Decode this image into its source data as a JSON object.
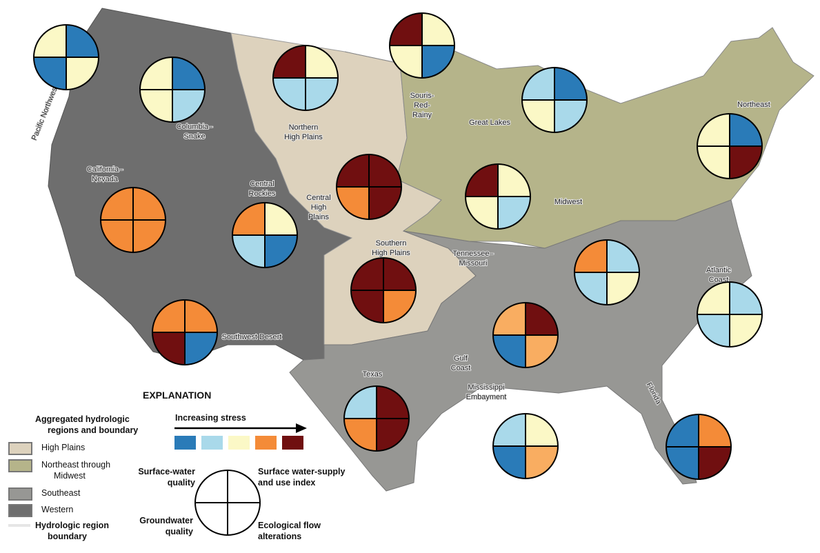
{
  "map": {
    "region_colors": {
      "High Plains": "#ddd2bd",
      "Northeast through Midwest": "#b5b48a",
      "Southeast": "#979794",
      "Western": "#6e6e6e"
    },
    "stress_colors": [
      "#2a7bb8",
      "#a9d9ea",
      "#fbf8c6",
      "#f48b38",
      "#700f10"
    ],
    "extra_color_light_orange": "#f9ad61",
    "region_labels": [
      "Pacific Northwest",
      "Columbia–\nSnake",
      "California–\nNevada",
      "Central\nRockies",
      "Northern\nHigh Plains",
      "Central\nHigh\nPlains",
      "Souris-\nRed-\nRainy",
      "Great Lakes",
      "Northeast",
      "Midwest",
      "Southern\nHigh Plains",
      "Tennessee–\nMissouri",
      "Atlantic\nCoast",
      "Southwest Desert",
      "Gulf\nCoast",
      "Texas",
      "Mississippi\nEmbayment",
      "Florida"
    ],
    "pies": [
      {
        "region": "Pacific Northwest",
        "q": [
          "#fbf8c6",
          "#2a7bb8",
          "#2a7bb8",
          "#fbf8c6"
        ]
      },
      {
        "region": "Columbia–Snake",
        "q": [
          "#fbf8c6",
          "#2a7bb8",
          "#fbf8c6",
          "#a9d9ea"
        ]
      },
      {
        "region": "Northern High Plains",
        "q": [
          "#700f10",
          "#fbf8c6",
          "#a9d9ea",
          "#a9d9ea"
        ]
      },
      {
        "region": "Souris-Red-Rainy",
        "q": [
          "#700f10",
          "#fbf8c6",
          "#fbf8c6",
          "#2a7bb8"
        ]
      },
      {
        "region": "Great Lakes",
        "q": [
          "#a9d9ea",
          "#2a7bb8",
          "#fbf8c6",
          "#a9d9ea"
        ]
      },
      {
        "region": "Northeast",
        "q": [
          "#fbf8c6",
          "#2a7bb8",
          "#fbf8c6",
          "#700f10"
        ]
      },
      {
        "region": "California–Nevada",
        "q": [
          "#f48b38",
          "#f48b38",
          "#f48b38",
          "#f48b38"
        ]
      },
      {
        "region": "Central Rockies",
        "q": [
          "#f48b38",
          "#fbf8c6",
          "#a9d9ea",
          "#2a7bb8"
        ]
      },
      {
        "region": "Central High Plains",
        "q": [
          "#700f10",
          "#700f10",
          "#f48b38",
          "#700f10"
        ]
      },
      {
        "region": "Midwest",
        "q": [
          "#700f10",
          "#fbf8c6",
          "#fbf8c6",
          "#a9d9ea"
        ]
      },
      {
        "region": "Tennessee–Missouri",
        "q": [
          "#f48b38",
          "#a9d9ea",
          "#a9d9ea",
          "#fbf8c6"
        ]
      },
      {
        "region": "Atlantic Coast",
        "q": [
          "#fbf8c6",
          "#a9d9ea",
          "#a9d9ea",
          "#fbf8c6"
        ]
      },
      {
        "region": "Southern High Plains",
        "q": [
          "#700f10",
          "#700f10",
          "#700f10",
          "#f48b38"
        ]
      },
      {
        "region": "Southwest Desert",
        "q": [
          "#f48b38",
          "#f48b38",
          "#700f10",
          "#2a7bb8"
        ]
      },
      {
        "region": "Gulf Coast",
        "q": [
          "#f9ad61",
          "#700f10",
          "#2a7bb8",
          "#f9ad61"
        ]
      },
      {
        "region": "Texas",
        "q": [
          "#a9d9ea",
          "#700f10",
          "#f48b38",
          "#700f10"
        ]
      },
      {
        "region": "Mississippi Embayment",
        "q": [
          "#a9d9ea",
          "#fbf8c6",
          "#2a7bb8",
          "#f9ad61"
        ]
      },
      {
        "region": "Florida",
        "q": [
          "#2a7bb8",
          "#f48b38",
          "#2a7bb8",
          "#700f10"
        ]
      }
    ]
  },
  "legend": {
    "title": "EXPLANATION",
    "regions_heading_1": "Aggregated hydrologic",
    "regions_heading_2": "regions and boundary",
    "items": [
      "High Plains",
      "Northeast through",
      "Midwest",
      "Southeast",
      "Western"
    ],
    "boundary_1": "Hydrologic region",
    "boundary_2": "boundary",
    "stress_label": "Increasing stress",
    "quad_tl_1": "Surface-water",
    "quad_tl_2": "quality",
    "quad_tr_1": "Surface water-supply",
    "quad_tr_2": "and use index",
    "quad_bl_1": "Groundwater",
    "quad_bl_2": "quality",
    "quad_br_1": "Ecological flow",
    "quad_br_2": "alterations"
  }
}
